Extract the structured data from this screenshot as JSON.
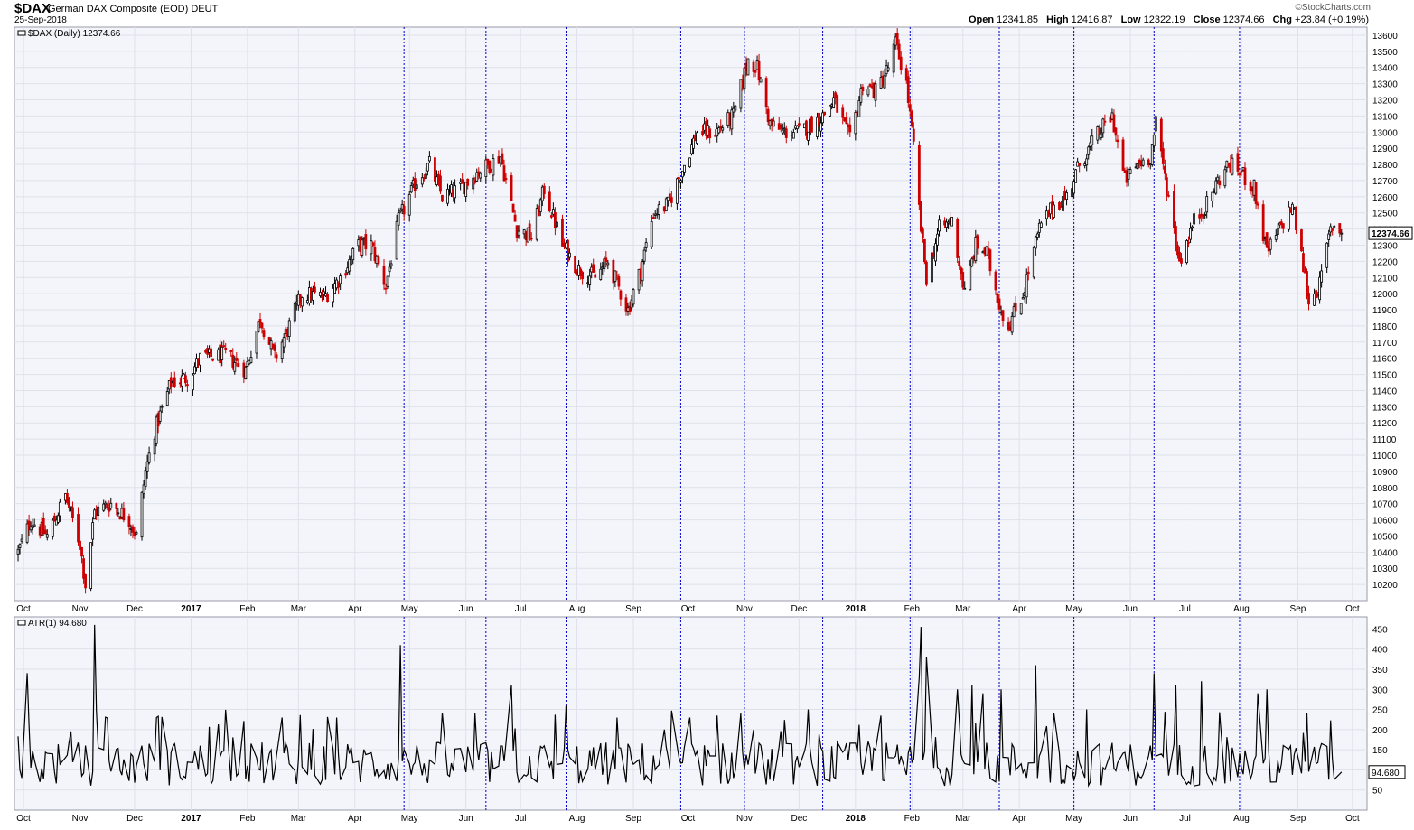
{
  "header": {
    "symbol": "$DAX",
    "name": "German DAX Composite (EOD)",
    "exchange": "DEUT",
    "date": "25-Sep-2018",
    "brand": "©StockCharts.com",
    "open_label": "Open",
    "open": "12341.85",
    "high_label": "High",
    "high": "12416.87",
    "low_label": "Low",
    "low": "12322.19",
    "close_label": "Close",
    "close": "12374.66",
    "chg_label": "Chg",
    "chg": "+23.84 (+0.19%)"
  },
  "colors": {
    "up": "#000000",
    "down": "#cc0000",
    "grid": "#dde1ea",
    "vline": "#0000cc",
    "panel_bg": "#f4f5fa"
  },
  "chart_data": [
    {
      "type": "candlestick",
      "legend": "$DAX (Daily) 12374.66",
      "last_value_label": "12374.66",
      "ylim": [
        10100,
        13650
      ],
      "yticks": [
        10200,
        10300,
        10400,
        10500,
        10600,
        10700,
        10800,
        10900,
        11000,
        11100,
        11200,
        11300,
        11400,
        11500,
        11600,
        11700,
        11800,
        11900,
        12000,
        12100,
        12200,
        12300,
        12400,
        12500,
        12600,
        12700,
        12800,
        12900,
        13000,
        13100,
        13200,
        13300,
        13400,
        13500,
        13600
      ],
      "x_tick_labels": [
        {
          "label": "Oct",
          "date": "2016-10"
        },
        {
          "label": "Nov",
          "date": "2016-11"
        },
        {
          "label": "Dec",
          "date": "2016-12"
        },
        {
          "label": "2017",
          "date": "2017-01",
          "bold": true
        },
        {
          "label": "Feb",
          "date": "2017-02"
        },
        {
          "label": "Mar",
          "date": "2017-03"
        },
        {
          "label": "Apr",
          "date": "2017-04"
        },
        {
          "label": "May",
          "date": "2017-05"
        },
        {
          "label": "Jun",
          "date": "2017-06"
        },
        {
          "label": "Jul",
          "date": "2017-07"
        },
        {
          "label": "Aug",
          "date": "2017-08"
        },
        {
          "label": "Sep",
          "date": "2017-09"
        },
        {
          "label": "Oct",
          "date": "2017-10"
        },
        {
          "label": "Nov",
          "date": "2017-11"
        },
        {
          "label": "Dec",
          "date": "2017-12"
        },
        {
          "label": "2018",
          "date": "2018-01",
          "bold": true
        },
        {
          "label": "Feb",
          "date": "2018-02"
        },
        {
          "label": "Mar",
          "date": "2018-03"
        },
        {
          "label": "Apr",
          "date": "2018-04"
        },
        {
          "label": "May",
          "date": "2018-05"
        },
        {
          "label": "Jun",
          "date": "2018-06"
        },
        {
          "label": "Jul",
          "date": "2018-07"
        },
        {
          "label": "Aug",
          "date": "2018-08"
        },
        {
          "label": "Sep",
          "date": "2018-09"
        },
        {
          "label": "Oct",
          "date": "2018-10"
        }
      ],
      "event_lines": [
        "2017-04-28",
        "2017-06-12",
        "2017-07-26",
        "2017-09-27",
        "2017-11-01",
        "2017-12-14",
        "2018-01-31",
        "2018-03-21",
        "2018-05-01",
        "2018-06-14",
        "2018-07-31"
      ],
      "close_path": [
        [
          "2016-09-28",
          10400
        ],
        [
          "2016-10-05",
          10600
        ],
        [
          "2016-10-14",
          10500
        ],
        [
          "2016-10-24",
          10750
        ],
        [
          "2016-11-01",
          10450
        ],
        [
          "2016-11-04",
          10200
        ],
        [
          "2016-11-09",
          10650
        ],
        [
          "2016-11-18",
          10700
        ],
        [
          "2016-11-28",
          10600
        ],
        [
          "2016-12-02",
          10500
        ],
        [
          "2016-12-07",
          10900
        ],
        [
          "2016-12-12",
          11150
        ],
        [
          "2016-12-21",
          11450
        ],
        [
          "2016-12-30",
          11480
        ],
        [
          "2017-01-06",
          11600
        ],
        [
          "2017-01-20",
          11620
        ],
        [
          "2017-01-31",
          11530
        ],
        [
          "2017-02-08",
          11850
        ],
        [
          "2017-02-16",
          11600
        ],
        [
          "2017-02-24",
          11800
        ],
        [
          "2017-03-03",
          12000
        ],
        [
          "2017-03-15",
          11980
        ],
        [
          "2017-03-24",
          12100
        ],
        [
          "2017-04-03",
          12300
        ],
        [
          "2017-04-10",
          12300
        ],
        [
          "2017-04-18",
          12050
        ],
        [
          "2017-04-25",
          12450
        ],
        [
          "2017-05-05",
          12700
        ],
        [
          "2017-05-12",
          12800
        ],
        [
          "2017-05-19",
          12600
        ],
        [
          "2017-05-29",
          12650
        ],
        [
          "2017-06-07",
          12750
        ],
        [
          "2017-06-14",
          12800
        ],
        [
          "2017-06-20",
          12850
        ],
        [
          "2017-06-29",
          12400
        ],
        [
          "2017-07-07",
          12350
        ],
        [
          "2017-07-14",
          12650
        ],
        [
          "2017-07-24",
          12300
        ],
        [
          "2017-08-02",
          12150
        ],
        [
          "2017-08-11",
          12100
        ],
        [
          "2017-08-18",
          12200
        ],
        [
          "2017-08-29",
          11900
        ],
        [
          "2017-09-05",
          12150
        ],
        [
          "2017-09-12",
          12500
        ],
        [
          "2017-09-20",
          12550
        ],
        [
          "2017-09-29",
          12800
        ],
        [
          "2017-10-06",
          13000
        ],
        [
          "2017-10-16",
          13000
        ],
        [
          "2017-10-26",
          13100
        ],
        [
          "2017-11-03",
          13450
        ],
        [
          "2017-11-08",
          13400
        ],
        [
          "2017-11-15",
          13050
        ],
        [
          "2017-11-22",
          13000
        ],
        [
          "2017-12-01",
          13000
        ],
        [
          "2017-12-08",
          13050
        ],
        [
          "2017-12-14",
          13100
        ],
        [
          "2017-12-20",
          13200
        ],
        [
          "2017-12-29",
          12950
        ],
        [
          "2018-01-05",
          13300
        ],
        [
          "2018-01-12",
          13250
        ],
        [
          "2018-01-19",
          13400
        ],
        [
          "2018-01-23",
          13550
        ],
        [
          "2018-01-29",
          13300
        ],
        [
          "2018-02-02",
          12900
        ],
        [
          "2018-02-06",
          12400
        ],
        [
          "2018-02-09",
          12100
        ],
        [
          "2018-02-16",
          12400
        ],
        [
          "2018-02-23",
          12450
        ],
        [
          "2018-03-02",
          12000
        ],
        [
          "2018-03-08",
          12300
        ],
        [
          "2018-03-14",
          12250
        ],
        [
          "2018-03-22",
          11900
        ],
        [
          "2018-03-26",
          11800
        ],
        [
          "2018-04-03",
          12000
        ],
        [
          "2018-04-12",
          12400
        ],
        [
          "2018-04-20",
          12550
        ],
        [
          "2018-04-27",
          12600
        ],
        [
          "2018-05-04",
          12800
        ],
        [
          "2018-05-15",
          13000
        ],
        [
          "2018-05-22",
          13100
        ],
        [
          "2018-05-29",
          12700
        ],
        [
          "2018-06-05",
          12800
        ],
        [
          "2018-06-12",
          12850
        ],
        [
          "2018-06-15",
          13050
        ],
        [
          "2018-06-22",
          12600
        ],
        [
          "2018-06-28",
          12200
        ],
        [
          "2018-07-06",
          12450
        ],
        [
          "2018-07-13",
          12550
        ],
        [
          "2018-07-19",
          12700
        ],
        [
          "2018-07-25",
          12800
        ],
        [
          "2018-08-01",
          12750
        ],
        [
          "2018-08-08",
          12650
        ],
        [
          "2018-08-15",
          12250
        ],
        [
          "2018-08-22",
          12400
        ],
        [
          "2018-08-29",
          12550
        ],
        [
          "2018-09-05",
          12100
        ],
        [
          "2018-09-07",
          11950
        ],
        [
          "2018-09-13",
          12050
        ],
        [
          "2018-09-19",
          12400
        ],
        [
          "2018-09-21",
          12430
        ],
        [
          "2018-09-25",
          12374.66
        ]
      ]
    },
    {
      "type": "line",
      "legend": "ATR(1) 94.680",
      "last_value_label": "94.680",
      "ylim": [
        0,
        480
      ],
      "yticks": [
        50,
        100,
        150,
        200,
        250,
        300,
        350,
        400,
        450
      ],
      "spikes": [
        [
          "2016-10-03",
          340
        ],
        [
          "2016-11-09",
          460
        ],
        [
          "2016-12-13",
          230
        ],
        [
          "2017-02-20",
          230
        ],
        [
          "2017-03-22",
          230
        ],
        [
          "2017-04-26",
          410
        ],
        [
          "2017-06-26",
          310
        ],
        [
          "2017-07-26",
          260
        ],
        [
          "2017-08-23",
          230
        ],
        [
          "2017-09-18",
          200
        ],
        [
          "2017-10-30",
          240
        ],
        [
          "2017-12-06",
          250
        ],
        [
          "2018-02-05",
          330
        ],
        [
          "2018-02-06",
          455
        ],
        [
          "2018-02-09",
          380
        ],
        [
          "2018-02-26",
          300
        ],
        [
          "2018-03-06",
          310
        ],
        [
          "2018-03-12",
          290
        ],
        [
          "2018-03-22",
          300
        ],
        [
          "2018-04-10",
          360
        ],
        [
          "2018-04-20",
          240
        ],
        [
          "2018-05-08",
          250
        ],
        [
          "2018-06-14",
          340
        ],
        [
          "2018-06-26",
          310
        ],
        [
          "2018-07-10",
          320
        ],
        [
          "2018-08-10",
          290
        ],
        [
          "2018-08-15",
          300
        ],
        [
          "2018-09-06",
          240
        ]
      ]
    }
  ]
}
